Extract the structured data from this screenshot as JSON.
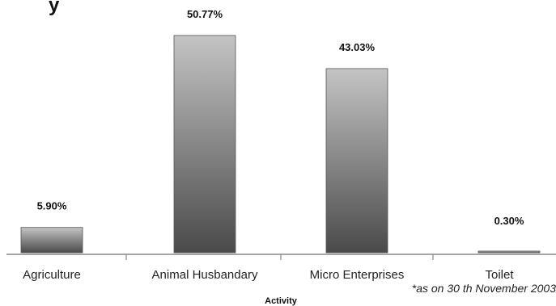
{
  "chart_data": {
    "type": "bar",
    "title_fragment": "y",
    "categories": [
      "Agriculture",
      "Animal Husbandary",
      "Micro Enterprises",
      "Toilet"
    ],
    "values": [
      5.9,
      50.77,
      43.03,
      0.3
    ],
    "data_labels": [
      "5.90%",
      "50.77%",
      "43.03%",
      "0.30%"
    ],
    "xlabel": "Activity",
    "ylabel": "",
    "ylim": [
      0,
      55
    ],
    "grid": false,
    "legend": "none",
    "footnote": "*as on  30 th November 2003",
    "bar_color_top": "#c4c4c4",
    "bar_color_bottom": "#4a4a4a",
    "axis_color": "#888888"
  }
}
